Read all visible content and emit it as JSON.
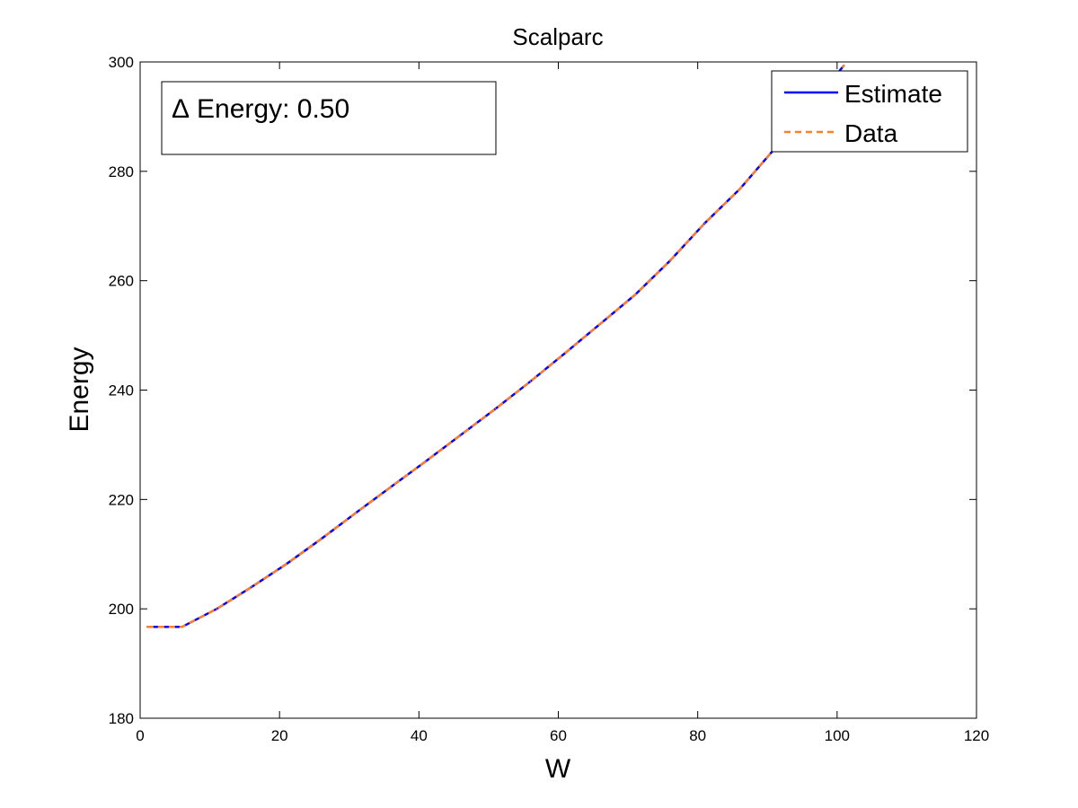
{
  "chart_data": {
    "type": "line",
    "title": "Scalparc",
    "xlabel": "W",
    "ylabel": "Energy",
    "xlim": [
      0,
      120
    ],
    "ylim": [
      180,
      300
    ],
    "xticks": [
      0,
      20,
      40,
      60,
      80,
      100,
      120
    ],
    "yticks": [
      180,
      200,
      220,
      240,
      260,
      280,
      300
    ],
    "xtick_labels": [
      "0",
      "20",
      "40",
      "60",
      "80",
      "100",
      "120"
    ],
    "ytick_labels": [
      "180",
      "200",
      "220",
      "240",
      "260",
      "280",
      "300"
    ],
    "grid": false,
    "legend_position": "top-right",
    "annotation": {
      "symbol": "Δ",
      "text": "Energy: 0.50"
    },
    "series": [
      {
        "name": "Estimate",
        "color": "#0000ff",
        "style": "solid",
        "x": [
          1,
          6,
          11,
          16,
          21,
          26,
          31,
          36,
          41,
          46,
          51,
          56,
          61,
          66,
          71,
          76,
          81,
          86,
          91,
          96,
          101
        ],
        "y": [
          196.7,
          196.7,
          200.0,
          204.0,
          208.2,
          212.8,
          217.6,
          222.3,
          227.0,
          231.8,
          236.6,
          241.6,
          246.8,
          252.1,
          257.4,
          263.6,
          270.5,
          276.7,
          284.1,
          291.6,
          299.4
        ]
      },
      {
        "name": "Data",
        "color": "#ff7f27",
        "style": "dashed",
        "x": [
          1,
          6,
          11,
          16,
          21,
          26,
          31,
          36,
          41,
          46,
          51,
          56,
          61,
          66,
          71,
          76,
          81,
          86,
          91,
          96,
          101
        ],
        "y": [
          196.7,
          196.7,
          200.0,
          204.0,
          208.2,
          212.8,
          217.6,
          222.3,
          227.0,
          231.8,
          236.6,
          241.6,
          246.8,
          252.1,
          257.4,
          263.6,
          270.5,
          276.7,
          284.1,
          291.6,
          299.4
        ]
      }
    ]
  }
}
